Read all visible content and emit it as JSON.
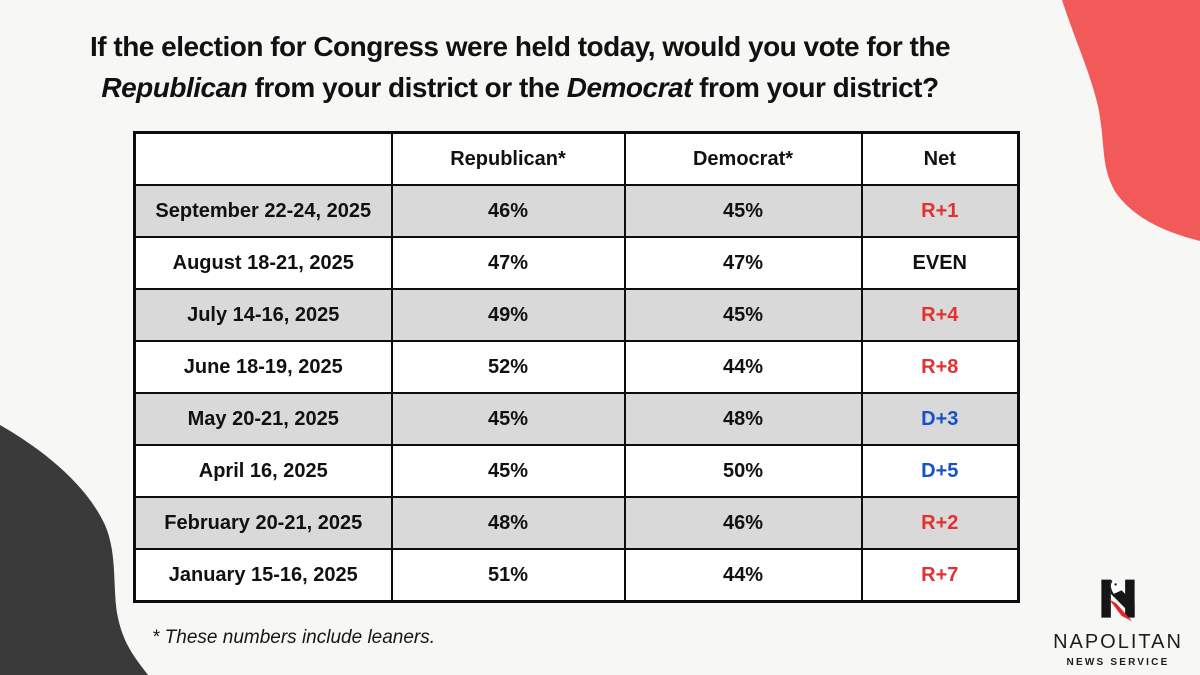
{
  "colors": {
    "background": "#f7f7f5",
    "ink": "#111111",
    "accent_red": "#f25a5a",
    "dark_blob": "#3a3a3a",
    "row_shade": "#d9d9d9",
    "net_red": "#e53030",
    "net_blue": "#1551c8"
  },
  "title": {
    "lines": [
      [
        {
          "text": "If the election for Congress were held today, would you vote for the",
          "italic": false
        }
      ],
      [
        {
          "text": "Republican",
          "italic": true
        },
        {
          "text": " from your district or the ",
          "italic": false
        },
        {
          "text": "Democrat",
          "italic": true
        },
        {
          "text": " from your district?",
          "italic": false
        }
      ]
    ]
  },
  "chart_data": {
    "type": "table",
    "columns": [
      "",
      "Republican*",
      "Democrat*",
      "Net"
    ],
    "rows": [
      {
        "date": "September 22-24, 2025",
        "republican": "46%",
        "democrat": "45%",
        "net": "R+1",
        "net_color": "red",
        "shaded": true
      },
      {
        "date": "August 18-21, 2025",
        "republican": "47%",
        "democrat": "47%",
        "net": "EVEN",
        "net_color": "black",
        "shaded": false
      },
      {
        "date": "July 14-16, 2025",
        "republican": "49%",
        "democrat": "45%",
        "net": "R+4",
        "net_color": "red",
        "shaded": true
      },
      {
        "date": "June 18-19, 2025",
        "republican": "52%",
        "democrat": "44%",
        "net": "R+8",
        "net_color": "red",
        "shaded": false
      },
      {
        "date": "May 20-21, 2025",
        "republican": "45%",
        "democrat": "48%",
        "net": "D+3",
        "net_color": "blue",
        "shaded": true
      },
      {
        "date": "April 16, 2025",
        "republican": "45%",
        "democrat": "50%",
        "net": "D+5",
        "net_color": "blue",
        "shaded": false
      },
      {
        "date": "February 20-21, 2025",
        "republican": "48%",
        "democrat": "46%",
        "net": "R+2",
        "net_color": "red",
        "shaded": true
      },
      {
        "date": "January 15-16, 2025",
        "republican": "51%",
        "democrat": "44%",
        "net": "R+7",
        "net_color": "red",
        "shaded": false
      }
    ]
  },
  "footnote": "* These numbers include leaners.",
  "logo": {
    "name": "NAPOLITAN",
    "tagline": "NEWS SERVICE",
    "mark": "napolitan-eagle-n-logo"
  }
}
